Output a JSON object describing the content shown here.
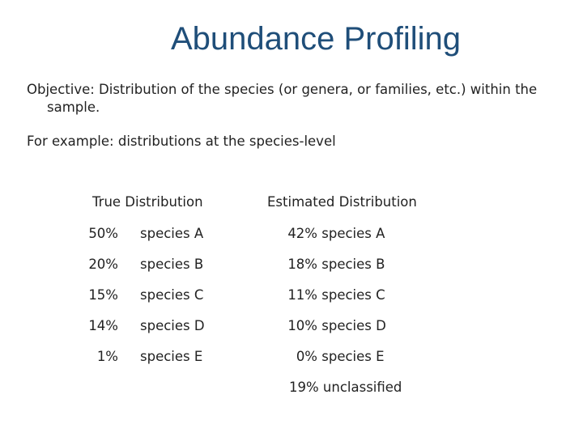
{
  "slide": {
    "title": "Abundance Profiling",
    "objective_line1": "Objective: Distribution of the species (or genera, or families, etc.) within the",
    "objective_line2": "sample.",
    "example": "For example: distributions at the species-level",
    "colors": {
      "title": "#1f4e79",
      "text": "#222222",
      "background": "#ffffff"
    }
  },
  "table": {
    "header_true": "True Distribution",
    "header_estimated": "Estimated Distribution",
    "rows": [
      {
        "true_pct": "50%",
        "true_species": "species A",
        "est_pct": "42%",
        "est_species": "species A"
      },
      {
        "true_pct": "20%",
        "true_species": "species B",
        "est_pct": "18%",
        "est_species": "species B"
      },
      {
        "true_pct": "15%",
        "true_species": "species C",
        "est_pct": "11%",
        "est_species": "species C"
      },
      {
        "true_pct": "14%",
        "true_species": "species D",
        "est_pct": "10%",
        "est_species": "species D"
      },
      {
        "true_pct": "1%",
        "true_species": "species E",
        "est_pct": "0%",
        "est_species": "species E"
      }
    ],
    "unclassified": "19% unclassified"
  }
}
